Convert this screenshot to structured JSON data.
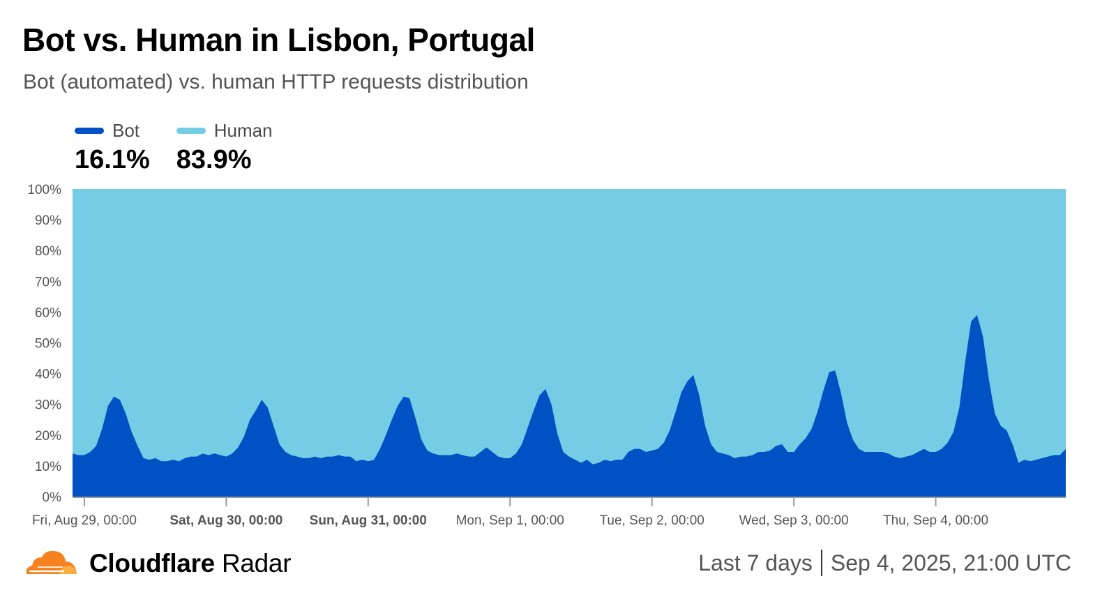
{
  "title": "Bot vs. Human in Lisbon, Portugal",
  "subtitle": "Bot (automated) vs. human HTTP requests distribution",
  "legend": [
    {
      "name": "Bot",
      "value": "16.1%",
      "color": "#0051c3"
    },
    {
      "name": "Human",
      "value": "83.9%",
      "color": "#74cde4"
    }
  ],
  "footer": {
    "brand_bold": "Cloudflare",
    "brand_rest": " Radar",
    "range": "Last 7 days",
    "timestamp": "Sep 4, 2025, 21:00 UTC"
  },
  "chart_data": {
    "type": "area",
    "stacked": true,
    "normalized": true,
    "ylim": [
      0,
      100
    ],
    "y_ticks": [
      "0%",
      "10%",
      "20%",
      "30%",
      "40%",
      "50%",
      "60%",
      "70%",
      "80%",
      "90%",
      "100%"
    ],
    "x_ticks": [
      {
        "label": "Fri, Aug 29, 00:00",
        "bold": false
      },
      {
        "label": "Sat, Aug 30, 00:00",
        "bold": true
      },
      {
        "label": "Sun, Aug 31, 00:00",
        "bold": true
      },
      {
        "label": "Mon, Sep 1, 00:00",
        "bold": false
      },
      {
        "label": "Tue, Sep 2, 00:00",
        "bold": false
      },
      {
        "label": "Wed, Sep 3, 00:00",
        "bold": false
      },
      {
        "label": "Thu, Sep 4, 00:00",
        "bold": false
      }
    ],
    "series": [
      {
        "name": "Bot",
        "color": "#0051c3",
        "values": [
          14,
          13.5,
          13.5,
          14.5,
          16.5,
          22,
          29.5,
          32.5,
          31.5,
          27,
          21,
          16.5,
          12.5,
          12,
          12.5,
          11.5,
          11.5,
          12,
          11.5,
          12.5,
          13,
          13,
          14,
          13.5,
          14,
          13.5,
          13,
          14,
          16,
          19.5,
          25,
          28,
          31.5,
          29,
          23,
          17,
          14.5,
          13.5,
          13,
          12.5,
          12.5,
          13,
          12.5,
          13,
          13,
          13.5,
          13,
          13,
          11.5,
          12,
          11.5,
          12,
          15.5,
          20,
          25,
          29.5,
          32.5,
          32,
          25.5,
          18.5,
          15,
          14,
          13.5,
          13.5,
          13.5,
          14,
          13.5,
          13,
          13,
          14.5,
          16,
          14.5,
          13,
          12.5,
          12.5,
          14,
          17,
          22.5,
          28,
          33,
          35,
          30,
          20.5,
          14.5,
          13,
          12,
          11,
          12,
          10.5,
          11,
          12,
          11.5,
          12,
          12,
          14.5,
          15.5,
          15.5,
          14.5,
          15,
          15.5,
          17.5,
          21.5,
          27.5,
          34,
          37.5,
          39.5,
          33,
          23,
          17,
          14.5,
          14,
          13.5,
          12.5,
          13,
          13,
          13.5,
          14.5,
          14.5,
          15,
          16.5,
          17,
          14.5,
          14.5,
          17,
          19,
          22,
          27.5,
          34.5,
          40.5,
          41,
          33.5,
          24,
          18.5,
          15.5,
          14.5,
          14.5,
          14.5,
          14.5,
          14,
          13,
          12.5,
          13,
          13.5,
          14.5,
          15.5,
          14.5,
          14.5,
          15.5,
          17.5,
          21,
          29,
          44,
          57,
          59,
          52,
          38,
          27,
          23,
          21.5,
          17,
          11,
          12,
          11.5,
          12,
          12.5,
          13,
          13.5,
          13.5,
          15.5
        ]
      },
      {
        "name": "Human",
        "color": "#74cde4",
        "remainder_of": "Bot",
        "total": 100
      }
    ]
  }
}
